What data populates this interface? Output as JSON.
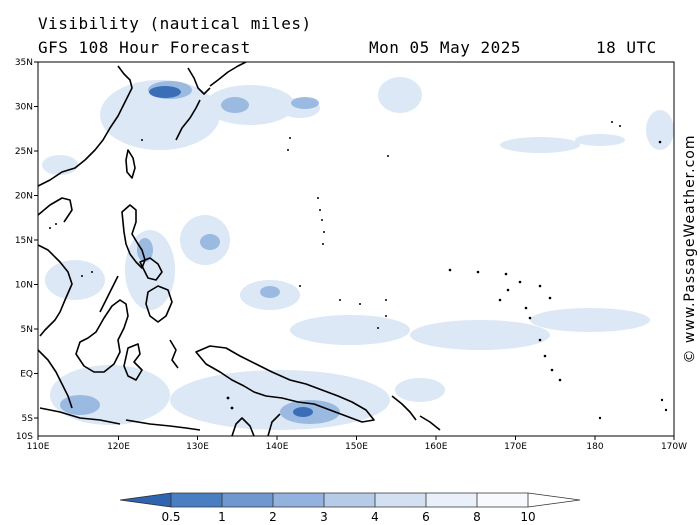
{
  "header": {
    "title": "Visibility (nautical miles)",
    "subtitle": "GFS 108 Hour Forecast",
    "date": "Mon 05 May 2025",
    "time": "18 UTC"
  },
  "map": {
    "lat_labels": [
      "35N",
      "30N",
      "25N",
      "20N",
      "15N",
      "10N",
      "5N",
      "EQ",
      "5S",
      "10S"
    ],
    "lon_labels": [
      "110E",
      "120E",
      "130E",
      "140E",
      "150E",
      "160E",
      "170E",
      "180",
      "170W"
    ],
    "credit": "© www.PassageWeather.com",
    "colors": {
      "land_outline": "#000000",
      "low_vis": "#3a6fb8",
      "mid_vis": "#8fb2dd",
      "high_vis": "#d7e4f4",
      "frame": "#000000"
    }
  },
  "legend": {
    "labels": [
      "0.5",
      "1",
      "2",
      "3",
      "4",
      "6",
      "8",
      "10"
    ],
    "colors": [
      "#2f64b0",
      "#4a7ec2",
      "#6f98d0",
      "#93b3de",
      "#b5cbe8",
      "#d3e0f2",
      "#eaf0f9",
      "#f7f9fd",
      "#ffffff"
    ]
  }
}
